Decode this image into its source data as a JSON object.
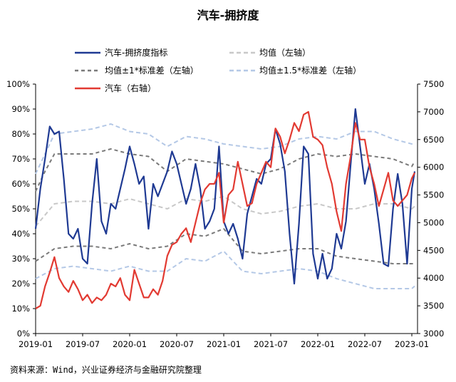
{
  "chart_data": {
    "type": "line",
    "title": "汽车-拥挤度",
    "source": "资料来源：Wind，兴业证券经济与金融研究院整理",
    "x_ticks": [
      "2019-01",
      "2019-07",
      "2020-01",
      "2020-07",
      "2021-01",
      "2021-07",
      "2022-01",
      "2022-07",
      "2023-01"
    ],
    "left_axis": {
      "ticks": [
        "0%",
        "10%",
        "20%",
        "30%",
        "40%",
        "50%",
        "60%",
        "70%",
        "80%",
        "90%",
        "100%"
      ],
      "ylim": [
        0,
        100
      ]
    },
    "right_axis": {
      "ticks": [
        "3000",
        "3500",
        "4000",
        "4500",
        "5000",
        "5500",
        "6000",
        "6500",
        "7000",
        "7500"
      ],
      "ylim": [
        3000,
        7500
      ]
    },
    "legend": [
      "汽车-拥挤度指标",
      "均值（左轴）",
      "均值±1*标准差（左轴）",
      "均值±1.5*标准差（左轴）",
      "汽车（右轴）"
    ],
    "colors": {
      "crowding": "#1f3a93",
      "mean": "#c8c8c8",
      "std1": "#7a7a7a",
      "std15": "#b4c8e6",
      "auto": "#e23a32"
    },
    "series": [
      {
        "name": "汽车-拥挤度指标",
        "axis": "left",
        "x": [
          2019.0,
          2019.05,
          2019.1,
          2019.15,
          2019.2,
          2019.25,
          2019.3,
          2019.35,
          2019.4,
          2019.45,
          2019.5,
          2019.55,
          2019.6,
          2019.65,
          2019.7,
          2019.75,
          2019.8,
          2019.85,
          2019.9,
          2019.95,
          2020.0,
          2020.05,
          2020.1,
          2020.15,
          2020.2,
          2020.25,
          2020.3,
          2020.35,
          2020.4,
          2020.45,
          2020.5,
          2020.55,
          2020.6,
          2020.65,
          2020.7,
          2020.75,
          2020.8,
          2020.85,
          2020.9,
          2020.95,
          2021.0,
          2021.05,
          2021.1,
          2021.15,
          2021.2,
          2021.25,
          2021.3,
          2021.35,
          2021.4,
          2021.45,
          2021.5,
          2021.55,
          2021.6,
          2021.65,
          2021.7,
          2021.75,
          2021.8,
          2021.85,
          2021.9,
          2021.95,
          2022.0,
          2022.05,
          2022.1,
          2022.15,
          2022.2,
          2022.25,
          2022.3,
          2022.35,
          2022.4,
          2022.45,
          2022.5,
          2022.55,
          2022.6,
          2022.65,
          2022.7,
          2022.75,
          2022.8,
          2022.85,
          2022.9,
          2022.95,
          2023.0,
          2023.03
        ],
        "values": [
          42,
          58,
          70,
          83,
          80,
          81,
          62,
          40,
          38,
          42,
          30,
          28,
          52,
          70,
          45,
          40,
          52,
          50,
          58,
          66,
          75,
          68,
          60,
          63,
          42,
          60,
          55,
          60,
          65,
          73,
          68,
          60,
          52,
          58,
          68,
          58,
          42,
          45,
          50,
          75,
          45,
          40,
          44,
          38,
          30,
          48,
          55,
          62,
          60,
          68,
          70,
          82,
          76,
          65,
          40,
          20,
          44,
          75,
          72,
          32,
          22,
          32,
          22,
          26,
          40,
          34,
          45,
          68,
          90,
          75,
          60,
          68,
          58,
          44,
          28,
          27,
          50,
          64,
          52,
          28,
          58,
          65
        ]
      },
      {
        "name": "均值（左轴）",
        "axis": "left",
        "x": [
          2019.0,
          2019.2,
          2019.4,
          2019.6,
          2019.8,
          2020.0,
          2020.2,
          2020.4,
          2020.6,
          2020.8,
          2021.0,
          2021.2,
          2021.4,
          2021.6,
          2021.8,
          2022.0,
          2022.2,
          2022.4,
          2022.6,
          2022.8,
          2023.0,
          2023.03
        ],
        "values": [
          43,
          52,
          53,
          53,
          52,
          54,
          52,
          50,
          54,
          53,
          55,
          50,
          48,
          49,
          51,
          52,
          50,
          50,
          52,
          52,
          50,
          51
        ]
      },
      {
        "name": "均值±1*标准差（左轴）",
        "axis": "left",
        "x": [
          2019.0,
          2019.1,
          2019.2,
          2019.4,
          2019.6,
          2019.8,
          2020.0,
          2020.2,
          2020.4,
          2020.6,
          2020.8,
          2021.0,
          2021.2,
          2021.4,
          2021.6,
          2021.8,
          2022.0,
          2022.2,
          2022.4,
          2022.6,
          2022.8,
          2023.0,
          2023.03
        ],
        "values": [
          57,
          65,
          72,
          72,
          72,
          74,
          72,
          71,
          65,
          70,
          69,
          68,
          66,
          64,
          66,
          70,
          72,
          71,
          72,
          71,
          70,
          67,
          69
        ]
      },
      {
        "name": "均值±1*标准差（左轴）",
        "axis": "left",
        "x": [
          2019.0,
          2019.2,
          2019.4,
          2019.6,
          2019.8,
          2020.0,
          2020.2,
          2020.4,
          2020.6,
          2020.8,
          2021.0,
          2021.2,
          2021.4,
          2021.6,
          2021.8,
          2022.0,
          2022.2,
          2022.4,
          2022.6,
          2022.8,
          2023.0,
          2023.03
        ],
        "values": [
          29,
          34,
          35,
          35,
          34,
          36,
          34,
          35,
          40,
          39,
          42,
          33,
          32,
          33,
          34,
          34,
          31,
          30,
          29,
          28,
          28,
          28
        ]
      },
      {
        "name": "均值±1.5*标准差（左轴）",
        "axis": "left",
        "x": [
          2019.0,
          2019.1,
          2019.2,
          2019.4,
          2019.6,
          2019.8,
          2020.0,
          2020.2,
          2020.4,
          2020.6,
          2020.8,
          2021.0,
          2021.2,
          2021.4,
          2021.6,
          2021.8,
          2022.0,
          2022.2,
          2022.4,
          2022.6,
          2022.8,
          2023.0,
          2023.03
        ],
        "values": [
          64,
          72,
          80,
          81,
          82,
          84,
          81,
          80,
          75,
          79,
          78,
          76,
          75,
          74,
          75,
          78,
          79,
          78,
          81,
          81,
          78,
          76,
          76
        ]
      },
      {
        "name": "均值±1.5*标准差（左轴）",
        "axis": "left",
        "x": [
          2019.0,
          2019.2,
          2019.4,
          2019.6,
          2019.8,
          2020.0,
          2020.2,
          2020.4,
          2020.6,
          2020.8,
          2021.0,
          2021.2,
          2021.4,
          2021.6,
          2021.8,
          2022.0,
          2022.2,
          2022.4,
          2022.6,
          2022.8,
          2023.0,
          2023.03
        ],
        "values": [
          22,
          26,
          27,
          26,
          25,
          27,
          25,
          25,
          30,
          29,
          33,
          25,
          24,
          25,
          26,
          25,
          22,
          20,
          18,
          18,
          18,
          19
        ]
      },
      {
        "name": "汽车（右轴）",
        "axis": "right",
        "x": [
          2019.0,
          2019.05,
          2019.1,
          2019.15,
          2019.2,
          2019.25,
          2019.3,
          2019.35,
          2019.4,
          2019.45,
          2019.5,
          2019.55,
          2019.6,
          2019.65,
          2019.7,
          2019.75,
          2019.8,
          2019.85,
          2019.9,
          2019.95,
          2020.0,
          2020.05,
          2020.1,
          2020.15,
          2020.2,
          2020.25,
          2020.3,
          2020.35,
          2020.4,
          2020.45,
          2020.5,
          2020.55,
          2020.6,
          2020.65,
          2020.7,
          2020.75,
          2020.8,
          2020.85,
          2020.9,
          2020.95,
          2021.0,
          2021.05,
          2021.1,
          2021.15,
          2021.2,
          2021.25,
          2021.3,
          2021.35,
          2021.4,
          2021.45,
          2021.5,
          2021.55,
          2021.6,
          2021.65,
          2021.7,
          2021.75,
          2021.8,
          2021.85,
          2021.9,
          2021.95,
          2022.0,
          2022.05,
          2022.1,
          2022.15,
          2022.2,
          2022.25,
          2022.3,
          2022.35,
          2022.4,
          2022.45,
          2022.5,
          2022.55,
          2022.6,
          2022.65,
          2022.7,
          2022.75,
          2022.8,
          2022.85,
          2022.9,
          2022.95,
          2023.0,
          2023.03
        ],
        "values": [
          3450,
          3500,
          3850,
          4100,
          4380,
          4000,
          3850,
          3750,
          3950,
          3800,
          3600,
          3700,
          3550,
          3650,
          3600,
          3700,
          3900,
          3850,
          4000,
          3700,
          3600,
          4150,
          3900,
          3650,
          3650,
          3800,
          3700,
          3950,
          4400,
          4600,
          4650,
          4800,
          4900,
          4650,
          5000,
          5350,
          5600,
          5700,
          5700,
          5900,
          5000,
          5500,
          5600,
          6100,
          5700,
          5300,
          5350,
          5700,
          5900,
          6100,
          6000,
          6700,
          6550,
          6250,
          6500,
          6800,
          6650,
          6950,
          7000,
          6550,
          6500,
          6400,
          6000,
          5700,
          5200,
          4850,
          5700,
          6200,
          6800,
          6500,
          6500,
          6000,
          5700,
          5300,
          5600,
          5900,
          5400,
          5300,
          5400,
          5500,
          5800,
          5900
        ]
      }
    ]
  }
}
